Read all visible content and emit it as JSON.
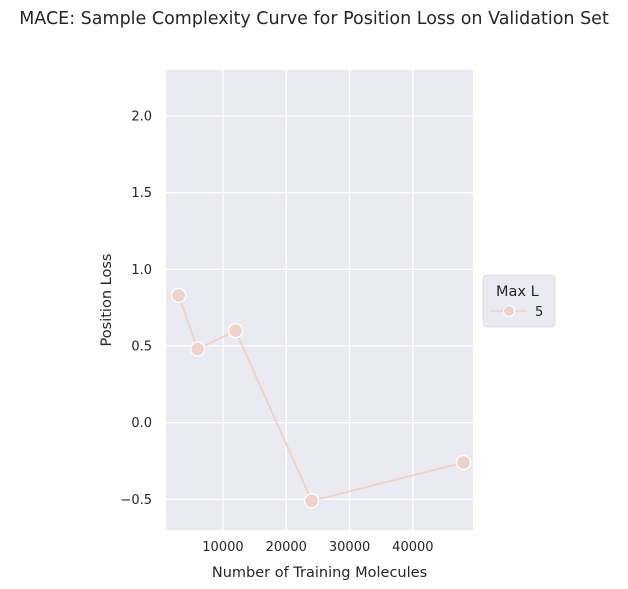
{
  "chart_data": {
    "type": "line",
    "title": "MACE: Sample Complexity Curve for Position Loss on Validation Set",
    "xlabel": "Number of Training Molecules",
    "ylabel": "Position Loss",
    "xlim": [
      1000,
      49500
    ],
    "ylim": [
      -0.7,
      2.3
    ],
    "xticks": [
      10000,
      20000,
      30000,
      40000
    ],
    "xtick_labels": [
      "10000",
      "20000",
      "30000",
      "40000"
    ],
    "yticks": [
      -0.5,
      0.0,
      0.5,
      1.0,
      1.5,
      2.0
    ],
    "ytick_labels": [
      "−0.5",
      "0.0",
      "0.5",
      "1.0",
      "1.5",
      "2.0"
    ],
    "grid": true,
    "legend": {
      "title": "Max L",
      "position": "outside-right"
    },
    "series": [
      {
        "name": "5",
        "color": "#efd3ca",
        "x": [
          3000,
          6000,
          12000,
          24000,
          48000
        ],
        "y": [
          0.83,
          0.48,
          0.6,
          -0.51,
          -0.26
        ]
      }
    ]
  }
}
